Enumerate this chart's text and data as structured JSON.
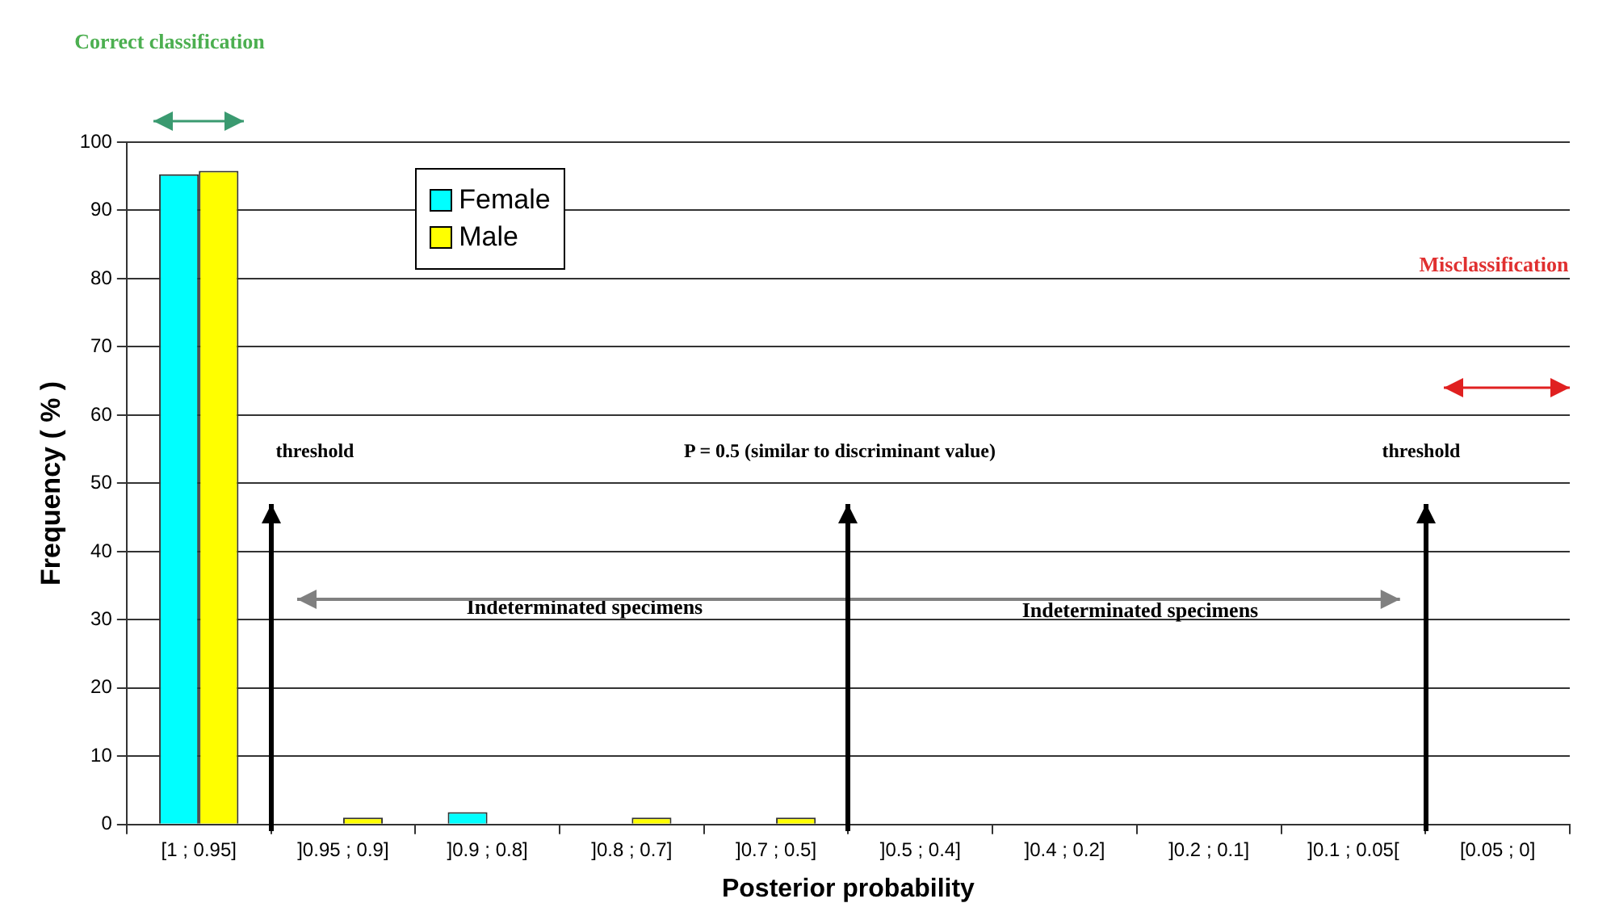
{
  "chart_data": {
    "type": "bar",
    "xlabel": "Posterior probability",
    "ylabel": "Frequency ( % )",
    "categories": [
      "[1 ; 0.95]",
      "]0.95 ; 0.9]",
      "]0.9 ; 0.8]",
      "]0.8 ; 0.7]",
      "]0.7 ; 0.5]",
      "]0.5 ; 0.4]",
      "]0.4 ; 0.2]",
      "]0.2 ; 0.1]",
      "]0.1 ; 0.05[",
      "[0.05 ; 0]"
    ],
    "series": [
      {
        "name": "Female",
        "color": "#00ffff",
        "values": [
          95.3,
          0,
          1.8,
          0,
          0,
          0,
          0,
          0,
          0,
          0
        ]
      },
      {
        "name": "Male",
        "color": "#ffff00",
        "values": [
          95.8,
          1,
          0,
          1,
          1,
          0,
          0,
          0,
          0,
          0
        ]
      }
    ],
    "ylim": [
      0,
      100
    ],
    "yticks": [
      0,
      10,
      20,
      30,
      40,
      50,
      60,
      70,
      80,
      90,
      100
    ],
    "grid": "y",
    "legend": "top left",
    "annotations": [
      "Correct classification",
      "Misclassification",
      "threshold",
      "P = 0.5 (similar to discriminant value)",
      "threshold",
      "Indeterminated specimens",
      "Indeterminated specimens"
    ]
  }
}
